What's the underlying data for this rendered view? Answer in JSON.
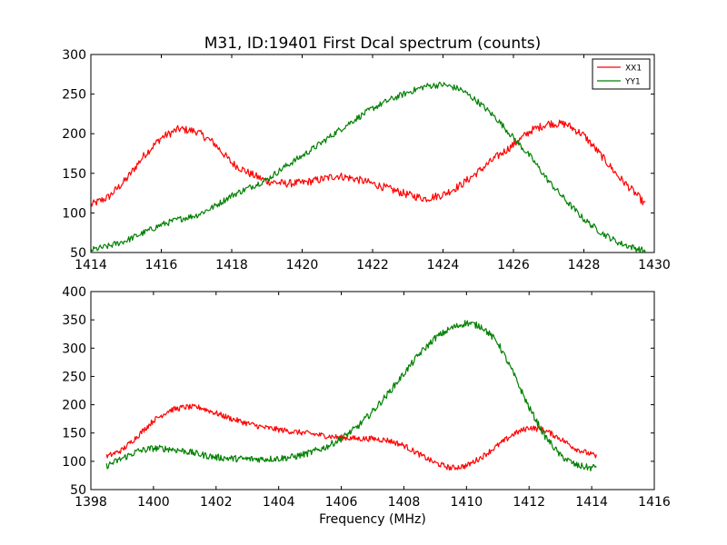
{
  "figure": {
    "title": "M31, ID:19401 First Dcal spectrum (counts)",
    "xlabel": "Frequency (MHz)"
  },
  "chart_data": [
    {
      "type": "line",
      "title": "M31, ID:19401 First Dcal spectrum (counts)",
      "xlabel": "",
      "ylabel": "",
      "xlim": [
        1414,
        1430
      ],
      "ylim": [
        50,
        300
      ],
      "xticks": [
        1414,
        1416,
        1418,
        1420,
        1422,
        1424,
        1426,
        1428,
        1430
      ],
      "yticks": [
        50,
        100,
        150,
        200,
        250,
        300
      ],
      "grid": false,
      "legend": {
        "position": "top-right",
        "entries": [
          "XX1",
          "YY1"
        ]
      },
      "series": [
        {
          "name": "XX1",
          "color": "#ff0000",
          "x": [
            1414.0,
            1414.5,
            1415.0,
            1415.5,
            1416.0,
            1416.5,
            1417.0,
            1417.5,
            1418.0,
            1418.5,
            1419.0,
            1419.5,
            1420.0,
            1420.5,
            1421.0,
            1421.5,
            1422.0,
            1422.5,
            1423.0,
            1423.5,
            1424.0,
            1424.5,
            1425.0,
            1425.5,
            1426.0,
            1426.5,
            1427.0,
            1427.5,
            1428.0,
            1428.5,
            1429.0,
            1429.5,
            1429.75
          ],
          "y": [
            110,
            120,
            142,
            172,
            195,
            206,
            203,
            188,
            163,
            150,
            140,
            137,
            138,
            142,
            147,
            143,
            137,
            130,
            123,
            118,
            123,
            135,
            152,
            170,
            186,
            204,
            213,
            212,
            198,
            172,
            145,
            123,
            110
          ],
          "noise": 5
        },
        {
          "name": "YY1",
          "color": "#008000",
          "x": [
            1414.0,
            1414.5,
            1415.0,
            1415.5,
            1416.0,
            1416.5,
            1417.0,
            1417.5,
            1418.0,
            1418.5,
            1419.0,
            1419.5,
            1420.0,
            1420.5,
            1421.0,
            1421.5,
            1422.0,
            1422.5,
            1423.0,
            1423.5,
            1424.0,
            1424.5,
            1425.0,
            1425.5,
            1426.0,
            1426.5,
            1427.0,
            1427.5,
            1428.0,
            1428.5,
            1429.0,
            1429.5,
            1429.75
          ],
          "y": [
            53,
            58,
            65,
            75,
            85,
            92,
            97,
            108,
            122,
            132,
            142,
            158,
            172,
            187,
            203,
            218,
            232,
            243,
            252,
            260,
            262,
            256,
            240,
            220,
            195,
            170,
            140,
            115,
            92,
            75,
            62,
            55,
            52
          ],
          "noise": 4
        }
      ]
    },
    {
      "type": "line",
      "title": "",
      "xlabel": "Frequency (MHz)",
      "ylabel": "",
      "xlim": [
        1398,
        1416
      ],
      "ylim": [
        50,
        400
      ],
      "xticks": [
        1398,
        1400,
        1402,
        1404,
        1406,
        1408,
        1410,
        1412,
        1414,
        1416
      ],
      "yticks": [
        50,
        100,
        150,
        200,
        250,
        300,
        350,
        400
      ],
      "grid": false,
      "series": [
        {
          "name": "XX1",
          "color": "#ff0000",
          "x": [
            1398.5,
            1399.0,
            1399.5,
            1400.0,
            1400.5,
            1401.0,
            1401.5,
            1402.0,
            1402.5,
            1403.0,
            1403.5,
            1404.0,
            1404.5,
            1405.0,
            1405.5,
            1406.0,
            1406.5,
            1407.0,
            1407.5,
            1408.0,
            1408.5,
            1409.0,
            1409.5,
            1410.0,
            1410.5,
            1411.0,
            1411.5,
            1412.0,
            1412.5,
            1413.0,
            1413.5,
            1414.0,
            1414.15
          ],
          "y": [
            108,
            120,
            145,
            172,
            190,
            196,
            195,
            185,
            175,
            167,
            160,
            156,
            152,
            149,
            145,
            142,
            140,
            140,
            137,
            128,
            112,
            97,
            88,
            92,
            108,
            128,
            148,
            160,
            155,
            140,
            122,
            112,
            108
          ],
          "noise": 5
        },
        {
          "name": "YY1",
          "color": "#008000",
          "x": [
            1398.5,
            1399.0,
            1399.5,
            1400.0,
            1400.5,
            1401.0,
            1401.5,
            1402.0,
            1402.5,
            1403.0,
            1403.5,
            1404.0,
            1404.5,
            1405.0,
            1405.5,
            1406.0,
            1406.5,
            1407.0,
            1407.5,
            1408.0,
            1408.5,
            1409.0,
            1409.5,
            1410.0,
            1410.5,
            1411.0,
            1411.5,
            1412.0,
            1412.5,
            1413.0,
            1413.5,
            1414.0,
            1414.15
          ],
          "y": [
            92,
            105,
            118,
            123,
            122,
            118,
            112,
            107,
            105,
            104,
            104,
            105,
            108,
            115,
            125,
            140,
            160,
            188,
            220,
            255,
            290,
            318,
            335,
            345,
            338,
            310,
            255,
            195,
            145,
            110,
            93,
            88,
            92
          ],
          "noise": 6
        }
      ]
    }
  ]
}
